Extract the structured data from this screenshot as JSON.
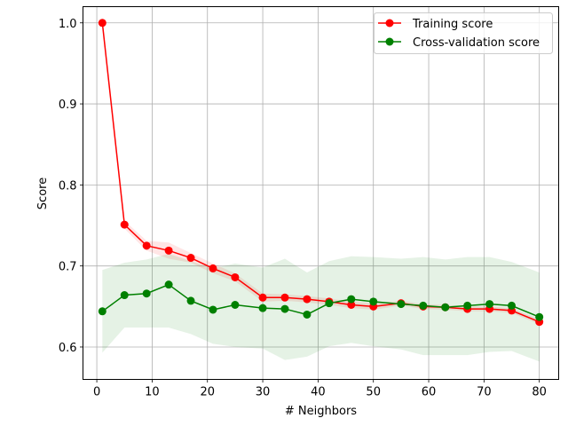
{
  "chart_data": {
    "type": "line",
    "xlabel": "# Neighbors",
    "ylabel": "Score",
    "xlim": [
      -2.5,
      83.5
    ],
    "ylim": [
      0.56,
      1.02
    ],
    "xticks": [
      0,
      10,
      20,
      30,
      40,
      50,
      60,
      70,
      80
    ],
    "yticks": [
      0.6,
      0.7,
      0.8,
      0.9,
      1.0
    ],
    "xtick_labels": [
      "0",
      "10",
      "20",
      "30",
      "40",
      "50",
      "60",
      "70",
      "80"
    ],
    "ytick_labels": [
      "0.6",
      "0.7",
      "0.8",
      "0.9",
      "1.0"
    ],
    "grid": true,
    "legend_position": "top-right",
    "x": [
      1,
      5,
      9,
      13,
      17,
      21,
      25,
      30,
      34,
      38,
      42,
      46,
      50,
      55,
      59,
      63,
      67,
      71,
      75,
      80
    ],
    "series": [
      {
        "name": "Training score",
        "color": "#ff0000",
        "band_color": "#ff0000",
        "values": [
          1.0,
          0.751,
          0.725,
          0.719,
          0.71,
          0.697,
          0.686,
          0.661,
          0.661,
          0.659,
          0.656,
          0.652,
          0.65,
          0.654,
          0.65,
          0.649,
          0.647,
          0.647,
          0.645,
          0.631
        ],
        "upper": [
          1.0,
          0.756,
          0.731,
          0.729,
          0.716,
          0.703,
          0.691,
          0.666,
          0.665,
          0.663,
          0.66,
          0.656,
          0.654,
          0.657,
          0.653,
          0.652,
          0.65,
          0.65,
          0.648,
          0.634
        ],
        "lower": [
          1.0,
          0.746,
          0.719,
          0.709,
          0.704,
          0.691,
          0.681,
          0.656,
          0.657,
          0.655,
          0.652,
          0.648,
          0.646,
          0.651,
          0.647,
          0.646,
          0.644,
          0.644,
          0.642,
          0.628
        ]
      },
      {
        "name": "Cross-validation score",
        "color": "#008000",
        "band_color": "#008000",
        "values": [
          0.644,
          0.664,
          0.666,
          0.677,
          0.657,
          0.646,
          0.652,
          0.648,
          0.647,
          0.64,
          0.654,
          0.659,
          0.656,
          0.653,
          0.651,
          0.649,
          0.651,
          0.653,
          0.651,
          0.637
        ],
        "upper": [
          0.695,
          0.704,
          0.708,
          0.715,
          0.706,
          0.697,
          0.703,
          0.698,
          0.709,
          0.692,
          0.706,
          0.712,
          0.711,
          0.709,
          0.711,
          0.708,
          0.711,
          0.711,
          0.705,
          0.692
        ],
        "lower": [
          0.593,
          0.624,
          0.624,
          0.624,
          0.616,
          0.604,
          0.6,
          0.598,
          0.584,
          0.588,
          0.601,
          0.605,
          0.601,
          0.597,
          0.59,
          0.59,
          0.59,
          0.594,
          0.595,
          0.582
        ]
      }
    ]
  }
}
